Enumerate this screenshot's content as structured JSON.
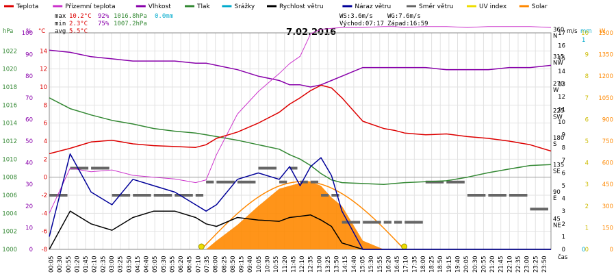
{
  "legend": [
    {
      "label": "Teplota",
      "color": "#dd0000"
    },
    {
      "label": "Přízemní teplota",
      "color": "#cc33cc"
    },
    {
      "label": "Vlhkost",
      "color": "#8800aa"
    },
    {
      "label": "Tlak",
      "color": "#338833"
    },
    {
      "label": "Srážky",
      "color": "#00aacc"
    },
    {
      "label": "Rychlost větru",
      "color": "#000000"
    },
    {
      "label": "Náraz větru",
      "color": "#000099"
    },
    {
      "label": "Směr větru",
      "color": "#666666"
    },
    {
      "label": "UV index",
      "color": "#eedd00"
    },
    {
      "label": "Solar",
      "color": "#ff8800"
    }
  ],
  "stats": {
    "max": {
      "label": "max",
      "temp": "10.2°C",
      "hum": "92%",
      "press": "1016.8hPa",
      "rain": "0.0mm"
    },
    "min": {
      "label": "min",
      "temp": "2.3°C",
      "hum": "75%",
      "press": "1007.2hPa"
    },
    "avg": {
      "label": "avg",
      "temp": "5.5°C"
    }
  },
  "wind_info": {
    "ws": "WS:3.6m/s",
    "wg": "WG:7.6m/s",
    "sunrise": "Východ:07:17",
    "sunset": "Západ:16:59"
  },
  "date_title": "7.02.2016",
  "axis_units": {
    "hpa": "hPa",
    "pct": "%",
    "degc": "°C",
    "ms": "m/s",
    "mm": "mm",
    "w": "W",
    "time": "čas"
  },
  "axes": {
    "hpa": [
      "1000",
      "1002",
      "1004",
      "1006",
      "1008",
      "1010",
      "1012",
      "1014",
      "1016",
      "1018",
      "1020",
      "1022"
    ],
    "pct": [
      "0",
      "10",
      "20",
      "30",
      "40",
      "50",
      "60",
      "70",
      "80",
      "90",
      "100"
    ],
    "degc": [
      "-8",
      "-6",
      "-4",
      "-2",
      "0",
      "2",
      "4",
      "6",
      "8",
      "10",
      "12",
      "14"
    ],
    "ms": [
      "0",
      "1",
      "2",
      "3",
      "4",
      "5",
      "6",
      "7",
      "8",
      "9",
      "10",
      "11",
      "12",
      "13",
      "14",
      "15",
      "16",
      "17"
    ],
    "dir": [
      {
        "deg": "45",
        "lbl": "NE"
      },
      {
        "deg": "90",
        "lbl": "E"
      },
      {
        "deg": "135",
        "lbl": "SE"
      },
      {
        "deg": "180",
        "lbl": "S"
      },
      {
        "deg": "225",
        "lbl": "SW"
      },
      {
        "deg": "270",
        "lbl": "W"
      },
      {
        "deg": "315",
        "lbl": "NW"
      },
      {
        "deg": "360",
        "lbl": "N"
      }
    ],
    "mm": [
      "0",
      "1"
    ],
    "uv": [
      "0",
      "1",
      "2",
      "3",
      "4",
      "5",
      "6",
      "7",
      "8",
      "9",
      "10"
    ],
    "w": [
      "0",
      "150",
      "300",
      "450",
      "600",
      "750",
      "900",
      "1050",
      "1200",
      "1350",
      "1500"
    ]
  },
  "chart_data": {
    "type": "line",
    "x_ticks": [
      "00:05",
      "00:30",
      "00:55",
      "01:20",
      "01:45",
      "02:10",
      "02:35",
      "03:00",
      "03:25",
      "03:50",
      "04:15",
      "04:40",
      "05:05",
      "05:30",
      "05:55",
      "06:20",
      "06:45",
      "07:10",
      "07:35",
      "08:00",
      "08:25",
      "08:50",
      "09:15",
      "09:40",
      "10:05",
      "10:30",
      "10:55",
      "11:20",
      "11:45",
      "12:10",
      "12:35",
      "13:00",
      "13:25",
      "13:50",
      "14:15",
      "14:40",
      "15:05",
      "15:30",
      "15:55",
      "16:20",
      "16:45",
      "17:10",
      "17:35",
      "18:00",
      "18:25",
      "18:50",
      "19:15",
      "19:40",
      "20:05",
      "20:30",
      "20:55",
      "21:20",
      "21:45",
      "22:10",
      "22:35",
      "23:00",
      "23:25",
      "23:50"
    ],
    "x_hours": [
      0,
      1,
      2,
      3,
      4,
      5,
      6,
      7,
      7.5,
      8,
      9,
      10,
      11,
      11.5,
      12,
      12.5,
      13,
      13.5,
      14,
      15,
      16,
      16.5,
      17,
      18,
      19,
      20,
      21,
      22,
      23,
      24
    ],
    "series": [
      {
        "name": "Teplota",
        "unit": "°C",
        "values": [
          2.6,
          3.2,
          3.9,
          4.1,
          3.7,
          3.5,
          3.4,
          3.3,
          3.6,
          4.3,
          5.0,
          6.0,
          7.2,
          8.1,
          8.8,
          9.6,
          10.2,
          9.9,
          8.8,
          6.2,
          5.4,
          5.2,
          4.9,
          4.7,
          4.8,
          4.5,
          4.3,
          4.0,
          3.6,
          2.9
        ]
      },
      {
        "name": "Přízemní teplota",
        "unit": "°C",
        "values": [
          -4.0,
          1.0,
          0.6,
          0.8,
          0.2,
          0.0,
          -0.2,
          -0.6,
          -0.3,
          2.5,
          7.0,
          9.5,
          11.5,
          12.6,
          13.4,
          15.9,
          16.4,
          16.5,
          16.6,
          16.6,
          16.7,
          16.7,
          16.6,
          16.7,
          16.7,
          16.6,
          16.7,
          16.7,
          16.7,
          16.6
        ]
      },
      {
        "name": "Vlhkost",
        "unit": "%",
        "values": [
          92,
          91,
          89,
          88,
          87,
          87,
          87,
          86,
          86,
          85,
          83,
          80,
          78,
          76,
          76,
          75,
          76,
          78,
          80,
          84,
          84,
          84,
          84,
          84,
          83,
          83,
          83,
          84,
          84,
          85
        ]
      },
      {
        "name": "Tlak",
        "unit": "hPa",
        "values": [
          1016.8,
          1015.6,
          1014.9,
          1014.3,
          1013.9,
          1013.4,
          1013.1,
          1012.9,
          1012.7,
          1012.5,
          1012.1,
          1011.6,
          1011.1,
          1010.5,
          1010.0,
          1009.3,
          1008.4,
          1007.7,
          1007.4,
          1007.3,
          1007.2,
          1007.3,
          1007.4,
          1007.5,
          1007.6,
          1008.0,
          1008.5,
          1008.9,
          1009.3,
          1009.4
        ]
      },
      {
        "name": "Rychlost větru",
        "unit": "m/s",
        "values": [
          0.0,
          3.0,
          2.0,
          1.5,
          2.5,
          3.0,
          3.0,
          2.5,
          2.0,
          1.8,
          2.5,
          2.3,
          2.2,
          2.5,
          2.6,
          2.7,
          2.3,
          1.8,
          0.5,
          0.0,
          0.0,
          0.0,
          0.0,
          0.0,
          0.0,
          0.0,
          0.0,
          0.0,
          0.0,
          0.0
        ]
      },
      {
        "name": "Náraz větru",
        "unit": "m/s",
        "values": [
          1.0,
          7.5,
          4.5,
          3.5,
          5.5,
          5.0,
          4.5,
          3.5,
          3.0,
          3.5,
          5.5,
          6.0,
          5.5,
          6.5,
          5.0,
          6.5,
          7.2,
          5.8,
          3.0,
          0.0,
          0.0,
          0.0,
          0.0,
          0.0,
          0.0,
          0.0,
          0.0,
          0.0,
          0.0,
          0.0
        ]
      },
      {
        "name": "Směr větru",
        "unit": "°",
        "values": [
          90,
          135,
          135,
          90,
          90,
          90,
          90,
          90,
          112,
          112,
          112,
          135,
          112,
          135,
          112,
          112,
          90,
          90,
          45,
          45,
          45,
          45,
          45,
          112,
          112,
          90,
          90,
          90,
          67,
          45
        ]
      },
      {
        "name": "Solar",
        "unit": "W",
        "values": [
          0,
          0,
          0,
          0,
          0,
          0,
          0,
          0,
          0,
          60,
          170,
          300,
          420,
          440,
          460,
          470,
          440,
          360,
          300,
          60,
          0,
          0,
          0,
          0,
          0,
          0,
          0,
          0,
          0,
          0
        ]
      }
    ]
  }
}
